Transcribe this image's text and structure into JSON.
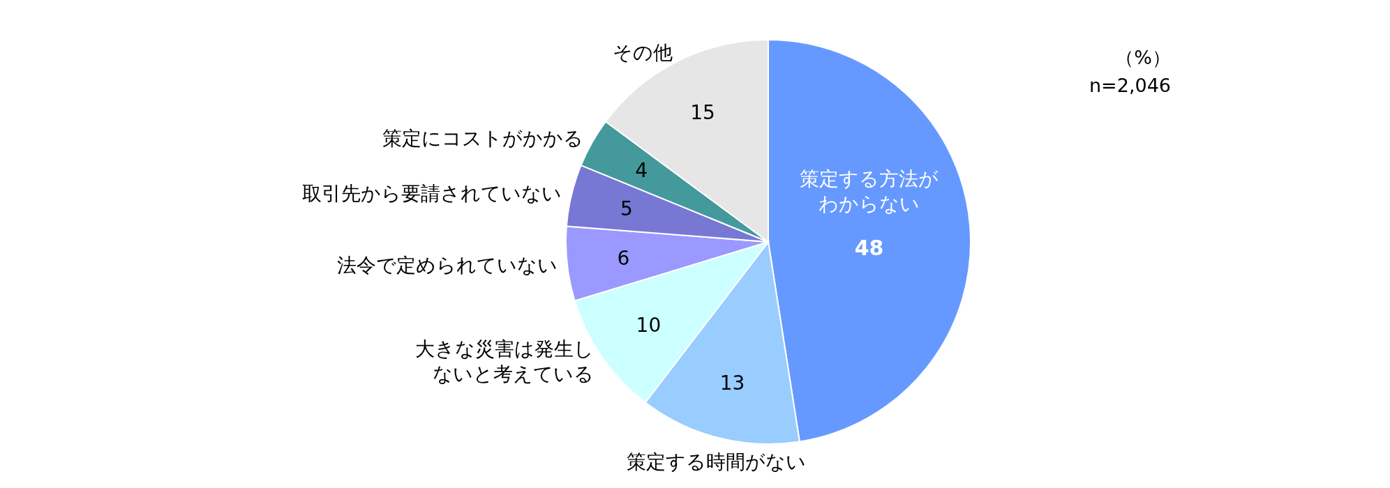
{
  "chart_data": {
    "type": "pie",
    "categories": [
      "策定する方法がわからない",
      "策定する時間がない",
      "大きな災害は発生しないと考えている",
      "法令で定められていない",
      "取引先から要請されていない",
      "策定にコストがかかる",
      "その他"
    ],
    "values": [
      48,
      13,
      10,
      6,
      5,
      4,
      15
    ],
    "colors": [
      "#6699ff",
      "#99ccff",
      "#ccffff",
      "#9999ff",
      "#7777d4",
      "#44999c",
      "#e6e6e6"
    ],
    "data_labels": true,
    "annotations": [
      "（%）",
      "n=2,046"
    ]
  }
}
